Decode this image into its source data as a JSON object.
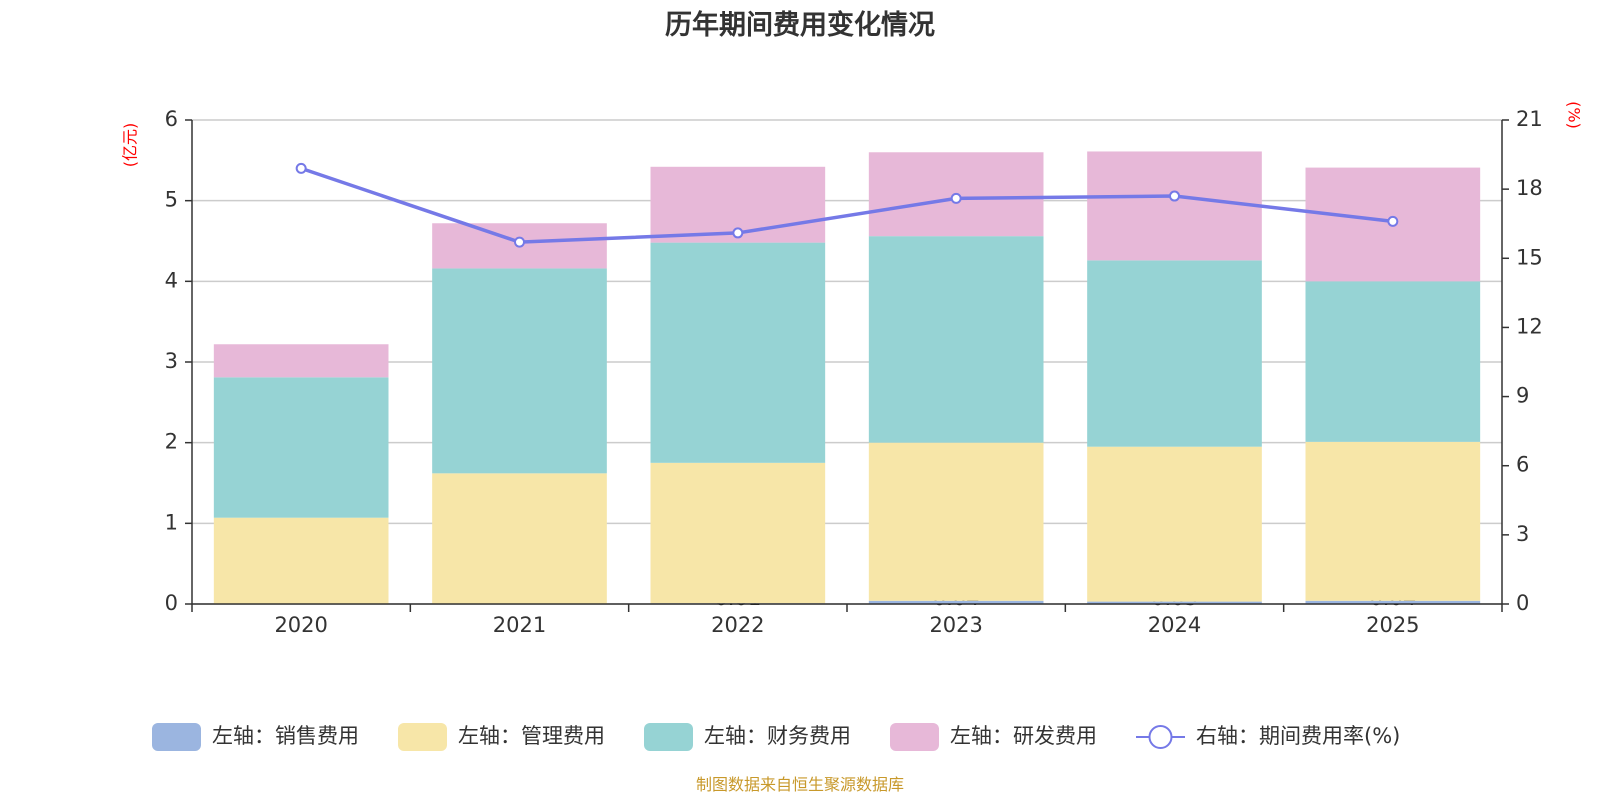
{
  "chart_data": {
    "type": "bar",
    "stacked": true,
    "title": "历年期间费用变化情况",
    "categories": [
      "2020",
      "2021",
      "2022",
      "2023",
      "2024",
      "2025"
    ],
    "y_left": {
      "unit_label": "(亿元)",
      "ylim": [
        0,
        6
      ],
      "ticks": [
        "0",
        "1",
        "2",
        "3",
        "4",
        "5",
        "6"
      ]
    },
    "y_right": {
      "unit_label": "(%)",
      "ylim": [
        0,
        21
      ],
      "ticks": [
        "0",
        "3",
        "6",
        "9",
        "12",
        "15",
        "18",
        "21"
      ]
    },
    "series": [
      {
        "name": "左轴：销售费用",
        "axis": "left",
        "kind": "bar",
        "color": "#9bb5e0",
        "values": [
          0.0,
          0.0,
          0.01,
          0.04,
          0.03,
          0.04
        ]
      },
      {
        "name": "左轴：管理费用",
        "axis": "left",
        "kind": "bar",
        "color": "#f7e6a8",
        "values": [
          1.07,
          1.62,
          1.74,
          1.96,
          1.92,
          1.97
        ]
      },
      {
        "name": "左轴：财务费用",
        "axis": "left",
        "kind": "bar",
        "color": "#96d3d4",
        "values": [
          1.74,
          2.54,
          2.73,
          2.56,
          2.31,
          1.99
        ]
      },
      {
        "name": "左轴：研发费用",
        "axis": "left",
        "kind": "bar",
        "color": "#e7b8d8",
        "values": [
          0.41,
          0.56,
          0.94,
          1.04,
          1.35,
          1.41
        ]
      },
      {
        "name": "右轴：期间费用率(%)",
        "axis": "right",
        "kind": "line",
        "color": "#7579e7",
        "values": [
          18.9,
          15.7,
          16.1,
          17.6,
          17.7,
          16.6
        ]
      }
    ],
    "data_labels": [
      "",
      "",
      "0.01",
      "0.04",
      "0.03",
      "0.04"
    ],
    "source": "制图数据来自恒生聚源数据库"
  }
}
